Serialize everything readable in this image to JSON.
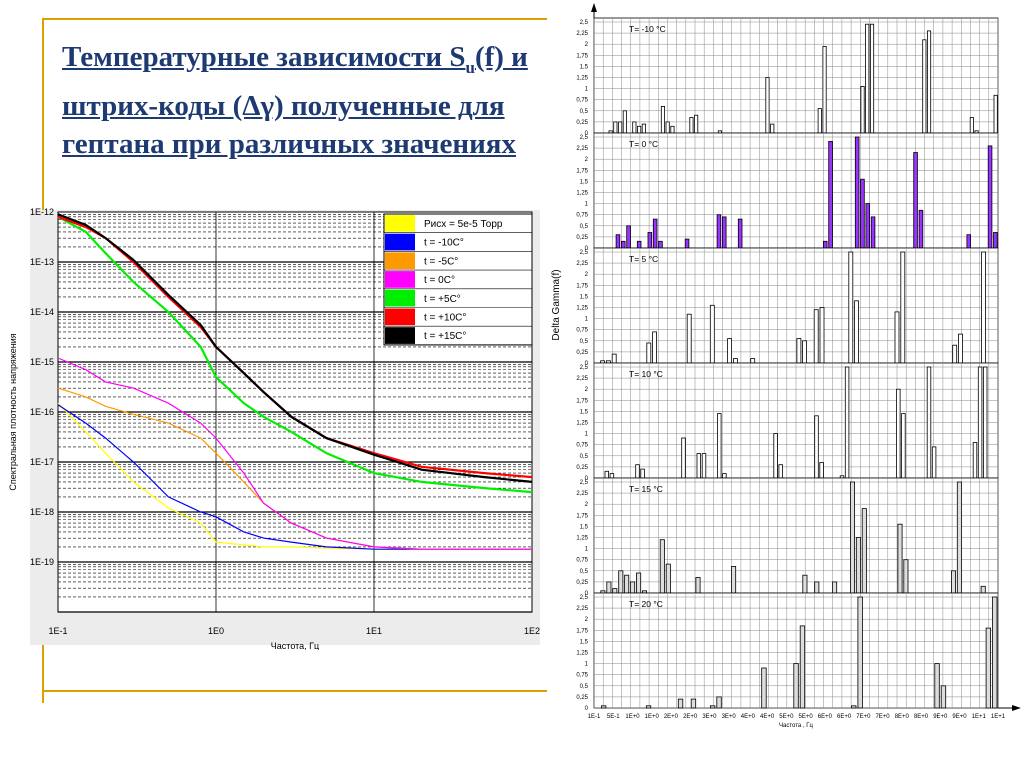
{
  "slide": {
    "title_pre": "Температурные зависимости S",
    "title_sub": "u",
    "title_post": "(f) и штрих-коды (Δγ) полученные для гептана при различных значениях"
  },
  "chart_data": [
    {
      "type": "line",
      "xscale": "log",
      "yscale": "log",
      "xlabel": "Частота, Гц",
      "ylabel": "Спектральная плотность напряжения",
      "xlim": [
        0.1,
        100
      ],
      "ylim": [
        1e-20,
        1e-12
      ],
      "xticks": [
        "1E-1",
        "1E0",
        "1E1",
        "1E2"
      ],
      "yticks": [
        "1E-12",
        "1E-13",
        "1E-14",
        "1E-15",
        "1E-16",
        "1E-17",
        "1E-18",
        "1E-19"
      ],
      "legend_position": "top-right",
      "series": [
        {
          "name": "Рисх = 5e-5 Торр",
          "color": "#ffff00",
          "x": [
            0.1,
            0.15,
            0.2,
            0.3,
            0.5,
            0.8,
            1,
            1.5,
            2,
            3,
            5,
            10,
            20,
            50,
            100
          ],
          "y": [
            1.5e-16,
            4e-17,
            1.5e-17,
            4e-18,
            1.2e-18,
            6e-19,
            2.5e-19,
            2.2e-19,
            2e-19,
            2e-19,
            1.9e-19,
            1.8e-19,
            1.8e-19,
            1.8e-19,
            1.8e-19
          ]
        },
        {
          "name": "t = -10C°",
          "color": "#0000ff",
          "x": [
            0.1,
            0.15,
            0.2,
            0.3,
            0.5,
            0.8,
            1,
            1.5,
            2,
            3,
            5,
            10,
            20,
            50,
            100
          ],
          "y": [
            1.4e-16,
            6e-17,
            3e-17,
            1e-17,
            2e-18,
            1e-18,
            8e-19,
            4e-19,
            3e-19,
            2.5e-19,
            2e-19,
            1.8e-19,
            1.8e-19,
            1.8e-19,
            1.8e-19
          ]
        },
        {
          "name": "t = -5C°",
          "color": "#ff9900",
          "x": [
            0.1,
            0.15,
            0.2,
            0.3,
            0.5,
            0.8,
            1,
            1.5,
            2,
            3,
            5,
            10,
            20,
            50,
            100
          ],
          "y": [
            3e-16,
            2e-16,
            1.3e-16,
            9e-17,
            6e-17,
            3e-17,
            1.5e-17,
            4e-18,
            1.5e-18,
            6e-19,
            3e-19,
            2e-19,
            1.8e-19,
            1.8e-19,
            1.8e-19
          ]
        },
        {
          "name": "t = 0C°",
          "color": "#ff00ff",
          "x": [
            0.1,
            0.15,
            0.2,
            0.3,
            0.5,
            0.8,
            1,
            1.5,
            2,
            3,
            5,
            10,
            20,
            50,
            100
          ],
          "y": [
            1.2e-15,
            7e-16,
            4e-16,
            3e-16,
            1.5e-16,
            6e-17,
            3e-17,
            6e-18,
            1.5e-18,
            6e-19,
            3e-19,
            2e-19,
            1.8e-19,
            1.8e-19,
            1.8e-19
          ]
        },
        {
          "name": "t = +5C°",
          "color": "#00ee00",
          "x": [
            0.1,
            0.15,
            0.2,
            0.3,
            0.5,
            0.8,
            1,
            1.5,
            2,
            3,
            5,
            10,
            20,
            50,
            100
          ],
          "y": [
            8e-13,
            4e-13,
            1.5e-13,
            4e-14,
            1e-14,
            2e-15,
            5e-16,
            1.5e-16,
            8e-17,
            4e-17,
            1.5e-17,
            6e-18,
            4e-18,
            3e-18,
            2.5e-18
          ]
        },
        {
          "name": "t = +10C°",
          "color": "#ff0000",
          "x": [
            0.1,
            0.15,
            0.2,
            0.3,
            0.5,
            0.8,
            1,
            1.5,
            2,
            3,
            5,
            10,
            20,
            50,
            100
          ],
          "y": [
            8e-13,
            5e-13,
            3e-13,
            1e-13,
            2e-14,
            5e-15,
            2e-15,
            6e-16,
            2.5e-16,
            8e-17,
            3e-17,
            1.5e-17,
            8e-18,
            6e-18,
            5e-18
          ]
        },
        {
          "name": "t = +15C°",
          "color": "#000000",
          "x": [
            0.1,
            0.15,
            0.2,
            0.3,
            0.5,
            0.8,
            1,
            1.5,
            2,
            3,
            5,
            10,
            20,
            50,
            100
          ],
          "y": [
            9e-13,
            5.5e-13,
            3e-13,
            1.1e-13,
            2.2e-14,
            5.5e-15,
            2e-15,
            6e-16,
            2.5e-16,
            8e-17,
            3e-17,
            1.4e-17,
            7e-18,
            5e-18,
            4e-18
          ]
        }
      ]
    },
    {
      "type": "bar",
      "ylabel": "Delta Gamma(f)",
      "xlabel": "Частота , Гц",
      "ylim": [
        0,
        2.5
      ],
      "yticks": [
        "0",
        "0,25",
        "0,5",
        "0,75",
        "1",
        "1,25",
        "1,5",
        "1,75",
        "2",
        "2,25",
        "2,5"
      ],
      "xticks": [
        "1E-1",
        "5E-1",
        "1E+0",
        "1E+0",
        "2E+0",
        "2E+0",
        "3E+0",
        "3E+0",
        "4E+0",
        "4E+0",
        "5E+0",
        "5E+0",
        "6E+0",
        "6E+0",
        "7E+0",
        "7E+0",
        "8E+0",
        "8E+0",
        "9E+0",
        "9E+0",
        "1E+1",
        "1E+1"
      ],
      "panels": [
        {
          "label": "T= -10 °C",
          "color": "#ffffff",
          "values": [
            0,
            0,
            0,
            0.05,
            0.25,
            0.25,
            0.5,
            0,
            0.25,
            0.15,
            0.2,
            0,
            0,
            0,
            0.6,
            0.25,
            0.15,
            0,
            0,
            0,
            0.35,
            0.4,
            0,
            0,
            0,
            0,
            0.05,
            0,
            0,
            0,
            0,
            0,
            0,
            0,
            0,
            0,
            1.25,
            0.2,
            0,
            0,
            0,
            0,
            0,
            0,
            0,
            0,
            0,
            0.55,
            1.95,
            0,
            0,
            0,
            0,
            0,
            0,
            0,
            1.05,
            2.45,
            2.45,
            0,
            0,
            0,
            0,
            0,
            0,
            0,
            0,
            0,
            0,
            2.1,
            2.3,
            0,
            0,
            0,
            0,
            0,
            0,
            0,
            0,
            0.35,
            0.05,
            0,
            0,
            0,
            0.85
          ]
        },
        {
          "label": "T= 0 °C",
          "color": "#9933ff",
          "values": [
            0,
            0,
            0,
            0,
            0.3,
            0.15,
            0.5,
            0,
            0.15,
            0,
            0.35,
            0.65,
            0.15,
            0,
            0,
            0,
            0,
            0.2,
            0,
            0,
            0,
            0,
            0,
            0.75,
            0.7,
            0,
            0,
            0.65,
            0,
            0,
            0,
            0,
            0,
            0,
            0,
            0,
            0,
            0,
            0,
            0,
            0,
            0,
            0,
            0.15,
            2.4,
            0,
            0,
            0,
            0,
            2.5,
            1.55,
            1.0,
            0.7,
            0,
            0,
            0,
            0,
            0,
            0,
            0,
            2.15,
            0.85,
            0,
            0,
            0,
            0,
            0,
            0,
            0,
            0,
            0.3,
            0,
            0,
            0,
            2.3,
            0.35
          ]
        },
        {
          "label": "T= 5 °C",
          "color": "#ffffff",
          "values": [
            0,
            0.05,
            0.05,
            0.2,
            0,
            0,
            0,
            0,
            0,
            0.45,
            0.7,
            0,
            0,
            0,
            0,
            0,
            1.1,
            0,
            0,
            0,
            1.3,
            0,
            0,
            0.55,
            0.1,
            0,
            0,
            0.1,
            0,
            0,
            0,
            0,
            0,
            0,
            0,
            0.55,
            0.5,
            0,
            1.2,
            1.25,
            0,
            0,
            0,
            0,
            2.5,
            1.4,
            0,
            0,
            0,
            0,
            0,
            0,
            1.15,
            2.5,
            0,
            0,
            0,
            0,
            0,
            0,
            0,
            0,
            0.4,
            0.65,
            0,
            0,
            0,
            2.5,
            0,
            0
          ]
        },
        {
          "label": "T= 10 °C",
          "color": "#ffffff",
          "values": [
            0,
            0,
            0.15,
            0.1,
            0,
            0,
            0,
            0,
            0.3,
            0.2,
            0,
            0,
            0,
            0,
            0,
            0,
            0,
            0.9,
            0,
            0,
            0.55,
            0.55,
            0,
            0,
            1.45,
            0.1,
            0,
            0,
            0,
            0,
            0,
            0,
            0,
            0,
            0,
            1.0,
            0.3,
            0,
            0,
            0,
            0,
            0,
            0,
            1.4,
            0.35,
            0,
            0,
            0,
            0.05,
            2.5,
            0,
            0,
            0,
            0,
            0,
            0,
            0,
            0,
            0,
            2.0,
            1.45,
            0,
            0,
            0,
            0,
            2.5,
            0.7,
            0,
            0,
            0,
            0,
            0,
            0,
            0,
            0.8,
            2.5,
            2.5,
            0,
            0
          ]
        },
        {
          "label": "T= 15 °C",
          "color": "#dddddd",
          "values": [
            0,
            0.05,
            0.25,
            0.1,
            0.5,
            0.4,
            0.25,
            0.45,
            0.05,
            0,
            0,
            1.2,
            0.65,
            0,
            0,
            0,
            0,
            0.35,
            0,
            0,
            0,
            0,
            0,
            0.6,
            0,
            0,
            0,
            0,
            0,
            0,
            0,
            0,
            0,
            0,
            0,
            0.4,
            0,
            0.25,
            0,
            0,
            0.25,
            0,
            0,
            2.5,
            1.25,
            1.9,
            0,
            0,
            0,
            0,
            0,
            1.55,
            0.75,
            0,
            0,
            0,
            0,
            0,
            0,
            0,
            0.5,
            2.5,
            0,
            0,
            0,
            0.15,
            0,
            0
          ]
        },
        {
          "label": "T= 20 °C",
          "color": "#dddddd",
          "values": [
            0,
            0.05,
            0,
            0,
            0,
            0,
            0,
            0,
            0.05,
            0,
            0,
            0,
            0,
            0.2,
            0,
            0.2,
            0,
            0,
            0.05,
            0.25,
            0,
            0,
            0,
            0,
            0,
            0,
            0.9,
            0,
            0,
            0,
            0,
            1.0,
            1.85,
            0,
            0,
            0,
            0,
            0,
            0,
            0,
            0.05,
            2.5,
            0,
            0,
            0,
            0,
            0,
            0,
            0,
            0,
            0,
            0,
            0,
            1.0,
            0.5,
            0,
            0,
            0,
            0,
            0,
            0,
            1.8,
            2.5
          ]
        }
      ]
    }
  ]
}
